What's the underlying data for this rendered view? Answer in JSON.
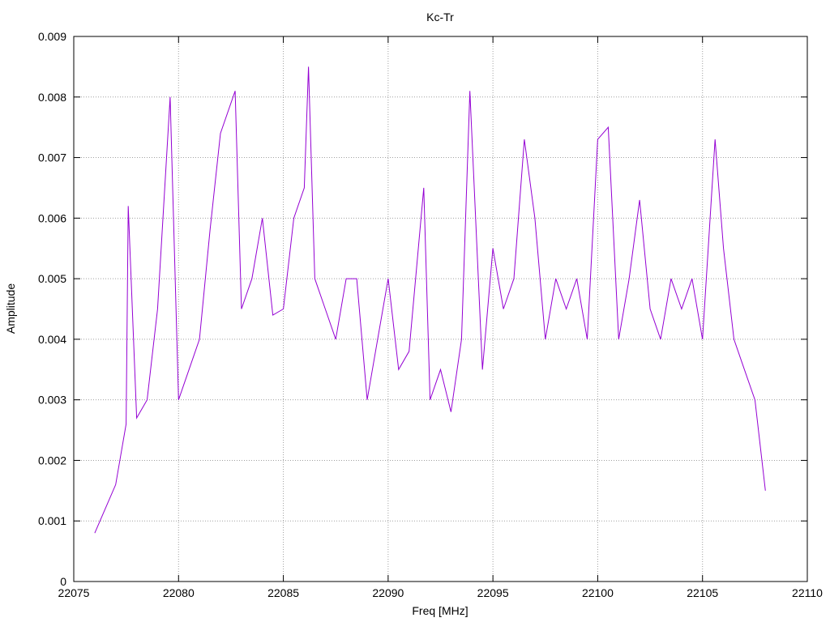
{
  "chart_data": {
    "type": "line",
    "title": "Kc-Tr",
    "xlabel": "Freq [MHz]",
    "ylabel": "Amplitude",
    "xlim": [
      22075,
      22110
    ],
    "ylim": [
      0,
      0.009
    ],
    "xticks": [
      22075,
      22080,
      22085,
      22090,
      22095,
      22100,
      22105,
      22110
    ],
    "xtick_labels": [
      "22075",
      "22080",
      "22085",
      "22090",
      "22095",
      "22100",
      "22105",
      "22110"
    ],
    "yticks": [
      0,
      0.001,
      0.002,
      0.003,
      0.004,
      0.005,
      0.006,
      0.007,
      0.008,
      0.009
    ],
    "ytick_labels": [
      "0",
      "0.001",
      "0.002",
      "0.003",
      "0.004",
      "0.005",
      "0.006",
      "0.007",
      "0.008",
      "0.009"
    ],
    "grid": true,
    "line_color": "#9400d3",
    "series": [
      {
        "x": [
          22076.0,
          22076.5,
          22077.0,
          22077.5,
          22077.6,
          22078.0,
          22078.5,
          22079.0,
          22079.6,
          22080.0,
          22080.5,
          22081.0,
          22081.5,
          22082.0,
          22082.7,
          22083.0,
          22083.5,
          22084.0,
          22084.5,
          22085.0,
          22085.5,
          22086.0,
          22086.2,
          22086.5,
          22087.0,
          22087.5,
          22088.0,
          22088.5,
          22089.0,
          22089.5,
          22090.0,
          22090.5,
          22091.0,
          22091.7,
          22092.0,
          22092.5,
          22093.0,
          22093.5,
          22093.9,
          22094.5,
          22095.0,
          22095.5,
          22096.0,
          22096.5,
          22097.0,
          22097.5,
          22098.0,
          22098.5,
          22099.0,
          22099.5,
          22100.0,
          22100.5,
          22101.0,
          22101.5,
          22102.0,
          22102.5,
          22103.0,
          22103.5,
          22104.0,
          22104.5,
          22105.0,
          22105.6,
          22106.0,
          22106.5,
          22107.0,
          22107.5,
          22108.0
        ],
        "values": [
          0.0008,
          0.0012,
          0.0016,
          0.0026,
          0.0062,
          0.0027,
          0.003,
          0.0045,
          0.008,
          0.003,
          0.0035,
          0.004,
          0.0058,
          0.0074,
          0.0081,
          0.0045,
          0.005,
          0.006,
          0.0044,
          0.0045,
          0.006,
          0.0065,
          0.0085,
          0.005,
          0.0045,
          0.004,
          0.005,
          0.005,
          0.003,
          0.004,
          0.005,
          0.0035,
          0.0038,
          0.0065,
          0.003,
          0.0035,
          0.0028,
          0.004,
          0.0081,
          0.0035,
          0.0055,
          0.0045,
          0.005,
          0.0073,
          0.006,
          0.004,
          0.005,
          0.0045,
          0.005,
          0.004,
          0.0073,
          0.0075,
          0.004,
          0.005,
          0.0063,
          0.0045,
          0.004,
          0.005,
          0.0045,
          0.005,
          0.004,
          0.0073,
          0.0055,
          0.004,
          0.0035,
          0.003,
          0.0015
        ]
      }
    ]
  }
}
